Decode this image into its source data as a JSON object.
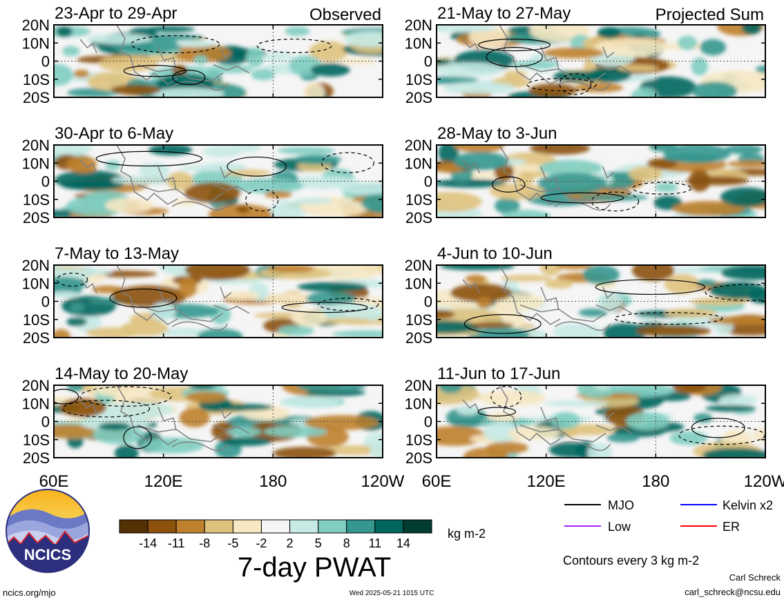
{
  "chart_data": {
    "type": "heatmap",
    "title": "7-day PWAT",
    "units": "kg m-2",
    "columns": [
      {
        "label": "Observed",
        "panels": [
          "23-Apr to 29-Apr",
          "30-Apr to 6-May",
          "7-May to 13-May",
          "14-May to 20-May"
        ]
      },
      {
        "label": "Projected Sum",
        "panels": [
          "21-May to 27-May",
          "28-May to 3-Jun",
          "4-Jun to 10-Jun",
          "11-Jun to 17-Jun"
        ]
      }
    ],
    "lat_ticks": [
      "20N",
      "10N",
      "0",
      "10S",
      "20S"
    ],
    "lon_ticks": [
      "60E",
      "120E",
      "180",
      "120W"
    ],
    "xlim": [
      60,
      240
    ],
    "ylim": [
      -20,
      20
    ],
    "colorbar": {
      "tick_labels": [
        "-14",
        "-11",
        "-8",
        "-5",
        "-2",
        "2",
        "5",
        "8",
        "11",
        "14"
      ],
      "colors": [
        "#543005",
        "#8c510a",
        "#bf812d",
        "#dfc27d",
        "#f6e8c3",
        "#f5f5f5",
        "#c7eae5",
        "#80cdc1",
        "#35978f",
        "#01665e",
        "#003c30"
      ]
    },
    "legend": [
      {
        "label": "MJO",
        "color": "#000000"
      },
      {
        "label": "Kelvin x2",
        "color": "#0000ff"
      },
      {
        "label": "Low",
        "color": "#a020f0"
      },
      {
        "label": "ER",
        "color": "#ff0000"
      }
    ],
    "contour_note": "Contours every 3 kg m-2"
  },
  "footer": {
    "logo_text": "NCICS",
    "url": "ncics.org/mjo",
    "timestamp": "Wed 2025-05-21 1015 UTC",
    "author": "Carl Schreck",
    "email": "carl_schreck@ncsu.edu"
  }
}
